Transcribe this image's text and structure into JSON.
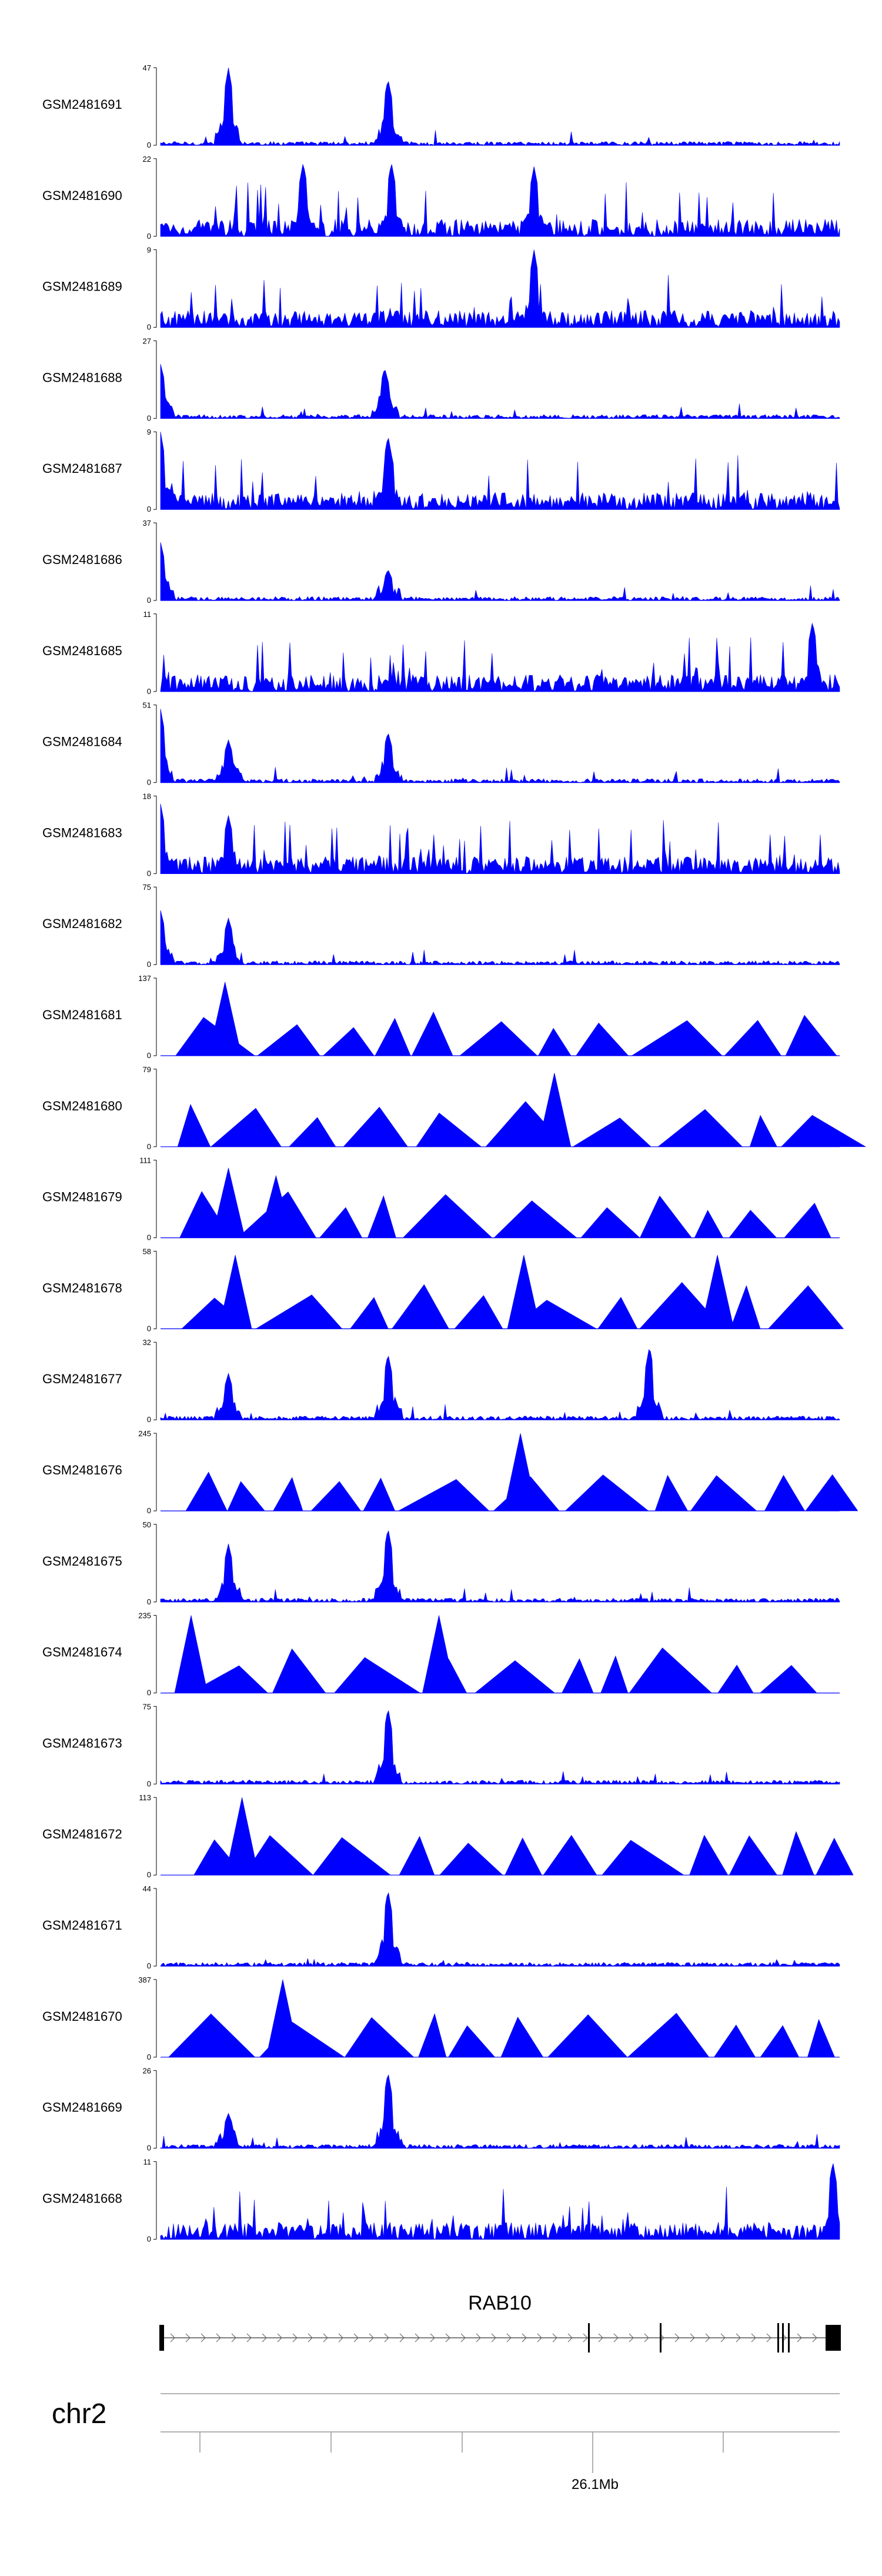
{
  "chart_data": {
    "type": "area",
    "title": "",
    "series_color": "#0000ff",
    "tracks": [
      {
        "name": "GSM2481691",
        "ymax": 47,
        "ymin": 0,
        "style": "dense",
        "peaks": [
          [
            0.1,
            1.0
          ],
          [
            0.335,
            0.85
          ]
        ]
      },
      {
        "name": "GSM2481690",
        "ymax": 22,
        "ymin": 0,
        "style": "dense",
        "peaks": [
          [
            0.21,
            0.95
          ],
          [
            0.34,
            0.95
          ],
          [
            0.55,
            0.9
          ]
        ]
      },
      {
        "name": "GSM2481689",
        "ymax": 9,
        "ymin": 0,
        "style": "dense",
        "peaks": [
          [
            0.55,
            1.0
          ]
        ]
      },
      {
        "name": "GSM2481688",
        "ymax": 27,
        "ymin": 0,
        "style": "dense",
        "peaks": [
          [
            0.0,
            0.7
          ],
          [
            0.33,
            0.65
          ]
        ]
      },
      {
        "name": "GSM2481687",
        "ymax": 9,
        "ymin": 0,
        "style": "dense",
        "peaks": [
          [
            0.0,
            1.0
          ],
          [
            0.335,
            0.95
          ]
        ]
      },
      {
        "name": "GSM2481686",
        "ymax": 37,
        "ymin": 0,
        "style": "dense",
        "peaks": [
          [
            0.0,
            0.75
          ],
          [
            0.335,
            0.4
          ]
        ]
      },
      {
        "name": "GSM2481685",
        "ymax": 11,
        "ymin": 0,
        "style": "dense",
        "peaks": [
          [
            0.96,
            0.9
          ]
        ]
      },
      {
        "name": "GSM2481684",
        "ymax": 51,
        "ymin": 0,
        "style": "dense",
        "peaks": [
          [
            0.0,
            0.95
          ],
          [
            0.1,
            0.55
          ],
          [
            0.335,
            0.65
          ]
        ]
      },
      {
        "name": "GSM2481683",
        "ymax": 18,
        "ymin": 0,
        "style": "dense",
        "peaks": [
          [
            0.0,
            0.9
          ],
          [
            0.1,
            0.75
          ]
        ]
      },
      {
        "name": "GSM2481682",
        "ymax": 75,
        "ymin": 0,
        "style": "dense",
        "peaks": [
          [
            0.0,
            0.7
          ],
          [
            0.1,
            0.6
          ]
        ]
      },
      {
        "name": "GSM2481681",
        "ymax": 137,
        "ymin": 0,
        "style": "triangles",
        "peaks": [
          [
            0.095,
            0.95
          ]
        ]
      },
      {
        "name": "GSM2481680",
        "ymax": 79,
        "ymin": 0,
        "style": "triangles",
        "peaks": [
          [
            0.58,
            0.95
          ]
        ]
      },
      {
        "name": "GSM2481679",
        "ymax": 111,
        "ymin": 0,
        "style": "triangles",
        "peaks": [
          [
            0.1,
            0.9
          ],
          [
            0.17,
            0.8
          ]
        ]
      },
      {
        "name": "GSM2481678",
        "ymax": 58,
        "ymin": 0,
        "style": "triangles",
        "peaks": [
          [
            0.11,
            0.95
          ],
          [
            0.535,
            0.95
          ],
          [
            0.82,
            0.95
          ]
        ]
      },
      {
        "name": "GSM2481677",
        "ymax": 32,
        "ymin": 0,
        "style": "dense",
        "peaks": [
          [
            0.1,
            0.6
          ],
          [
            0.335,
            0.85
          ],
          [
            0.72,
            0.95
          ]
        ]
      },
      {
        "name": "GSM2481676",
        "ymax": 245,
        "ymin": 0,
        "style": "triangles",
        "peaks": [
          [
            0.53,
            1.0
          ]
        ]
      },
      {
        "name": "GSM2481675",
        "ymax": 50,
        "ymin": 0,
        "style": "dense",
        "peaks": [
          [
            0.1,
            0.75
          ],
          [
            0.335,
            0.95
          ]
        ]
      },
      {
        "name": "GSM2481674",
        "ymax": 235,
        "ymin": 0,
        "style": "triangles",
        "peaks": [
          [
            0.045,
            1.0
          ],
          [
            0.41,
            1.0
          ]
        ]
      },
      {
        "name": "GSM2481673",
        "ymax": 75,
        "ymin": 0,
        "style": "dense",
        "peaks": [
          [
            0.335,
            0.98
          ]
        ]
      },
      {
        "name": "GSM2481672",
        "ymax": 113,
        "ymin": 0,
        "style": "triangles",
        "peaks": [
          [
            0.12,
            1.0
          ]
        ]
      },
      {
        "name": "GSM2481671",
        "ymax": 44,
        "ymin": 0,
        "style": "dense",
        "peaks": [
          [
            0.335,
            0.98
          ]
        ]
      },
      {
        "name": "GSM2481670",
        "ymax": 387,
        "ymin": 0,
        "style": "triangles",
        "peaks": [
          [
            0.18,
            1.0
          ]
        ]
      },
      {
        "name": "GSM2481669",
        "ymax": 26,
        "ymin": 0,
        "style": "dense",
        "peaks": [
          [
            0.1,
            0.45
          ],
          [
            0.335,
            0.98
          ]
        ]
      },
      {
        "name": "GSM2481668",
        "ymax": 11,
        "ymin": 0,
        "style": "dense",
        "peaks": [
          [
            0.99,
            1.0
          ]
        ]
      }
    ],
    "gene": {
      "name": "RAB10",
      "strand": "+"
    },
    "chromosome": "chr2",
    "position_label": "26.1Mb"
  }
}
